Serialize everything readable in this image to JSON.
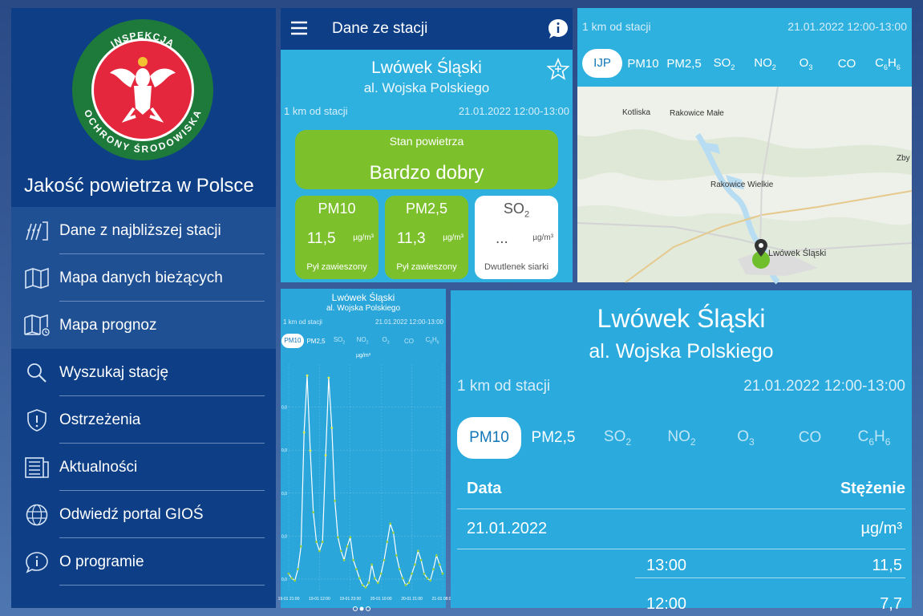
{
  "menu": {
    "logo": {
      "top_text": "INSPEKCJA",
      "bottom_text": "OCHRONY ŚRODOWISKA"
    },
    "app_title": "Jakość powietrza w Polsce",
    "items": [
      {
        "label": "Dane z najbliższej stacji",
        "icon": "station-data-icon"
      },
      {
        "label": "Mapa danych bieżących",
        "icon": "map-icon"
      },
      {
        "label": "Mapa prognoz",
        "icon": "forecast-map-icon"
      },
      {
        "label": "Wyszukaj stację",
        "icon": "search-icon"
      },
      {
        "label": "Ostrzeżenia",
        "icon": "warning-shield-icon"
      },
      {
        "label": "Aktualności",
        "icon": "news-icon"
      },
      {
        "label": "Odwiedź portal GIOŚ",
        "icon": "globe-www-icon"
      },
      {
        "label": "O programie",
        "icon": "info-icon"
      }
    ]
  },
  "station": {
    "title": "Dane ze stacji",
    "name": "Lwówek Śląski",
    "street": "al. Wojska Polskiego",
    "distance": "1 km od stacji",
    "time": "21.01.2022 12:00-13:00",
    "air_state_label": "Stan powietrza",
    "air_state_value": "Bardzo dobry",
    "cards": [
      {
        "name": "PM10",
        "value": "11,5",
        "unit": "µg/m³",
        "desc": "Pył zawieszony",
        "color": "#7cc12c"
      },
      {
        "name": "PM2,5",
        "value": "11,3",
        "unit": "µg/m³",
        "desc": "Pył zawieszony",
        "color": "#7cc12c"
      },
      {
        "name": "SO",
        "sub": "2",
        "value": "...",
        "unit": "µg/m³",
        "desc": "Dwutlenek siarki",
        "color": "#ffffff"
      }
    ]
  },
  "map": {
    "distance": "1 km od stacji",
    "time": "21.01.2022 12:00-13:00",
    "tabs": [
      {
        "label": "IJP",
        "sub": ""
      },
      {
        "label": "PM10",
        "sub": ""
      },
      {
        "label": "PM2,5",
        "sub": ""
      },
      {
        "label": "SO",
        "sub": "2"
      },
      {
        "label": "NO",
        "sub": "2"
      },
      {
        "label": "O",
        "sub": "3"
      },
      {
        "label": "CO",
        "sub": ""
      },
      {
        "label": "C",
        "sub": "6",
        "mid": "H",
        "sub2": "6"
      }
    ],
    "places": [
      "Kotliska",
      "Rakowice Małe",
      "Rakowice Wielkie",
      "Lwówek Śląski",
      "Zby"
    ]
  },
  "chart_panel": {
    "name": "Lwówek Śląski",
    "street": "al. Wojska Polskiego",
    "distance": "1 km od stacji",
    "time": "21.01.2022 12:00-13:00",
    "tabs": [
      {
        "label": "PM10",
        "sub": ""
      },
      {
        "label": "PM2,5",
        "sub": ""
      },
      {
        "label": "SO",
        "sub": "2"
      },
      {
        "label": "NO",
        "sub": "2"
      },
      {
        "label": "O",
        "sub": "3"
      },
      {
        "label": "CO",
        "sub": ""
      },
      {
        "label": "C",
        "sub": "6",
        "mid": "H",
        "sub2": "6"
      }
    ],
    "unit": "µg/m³"
  },
  "chart_data": {
    "type": "line",
    "title": "",
    "xlabel": "",
    "ylabel": "µg/m³",
    "x_ticks": [
      "19-01 21:00",
      "19-01 12:00",
      "19-01 23:00",
      "20-01 10:00",
      "20-01 21:00",
      "21-01 08:00"
    ],
    "y_ticks": [
      "0,0",
      "0,0",
      "0,0",
      "0,0",
      "0,0"
    ],
    "series": [
      {
        "values": [
          8,
          6,
          5,
          10,
          20,
          70,
          95,
          62,
          35,
          22,
          18,
          22,
          60,
          94,
          72,
          40,
          24,
          18,
          14,
          20,
          24,
          14,
          10,
          6,
          3,
          2,
          4,
          12,
          6,
          4,
          8,
          14,
          22,
          30,
          26,
          16,
          10,
          6,
          3,
          4,
          8,
          12,
          18,
          14,
          8,
          6,
          5,
          10,
          16,
          12,
          8
        ]
      }
    ],
    "grid": true
  },
  "detail": {
    "name": "Lwówek Śląski",
    "street": "al. Wojska Polskiego",
    "distance": "1 km od stacji",
    "time": "21.01.2022 12:00-13:00",
    "tabs": [
      {
        "label": "PM10",
        "sub": ""
      },
      {
        "label": "PM2,5",
        "sub": ""
      },
      {
        "label": "SO",
        "sub": "2"
      },
      {
        "label": "NO",
        "sub": "2"
      },
      {
        "label": "O",
        "sub": "3"
      },
      {
        "label": "CO",
        "sub": ""
      },
      {
        "label": "C",
        "sub": "6",
        "mid": "H",
        "sub2": "6"
      }
    ],
    "col_date": "Data",
    "col_value": "Stężenie",
    "date": "21.01.2022",
    "unit": "µg/m³",
    "rows": [
      {
        "time": "13:00",
        "value": "11,5"
      },
      {
        "time": "12:00",
        "value": "7,7"
      }
    ]
  }
}
